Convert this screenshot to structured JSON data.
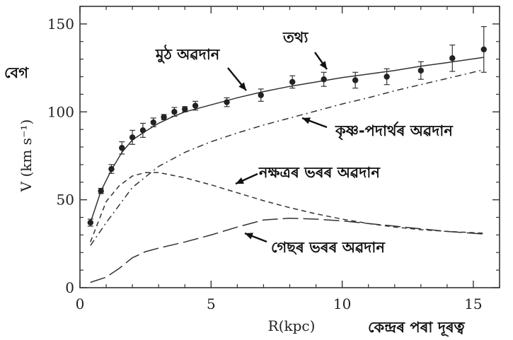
{
  "chart_data": {
    "type": "line",
    "xlabel": "R(kpc)",
    "ylabel": "V (km s⁻¹)",
    "xlim": [
      0,
      16
    ],
    "ylim": [
      0,
      160
    ],
    "xticks": [
      0,
      5,
      10,
      15
    ],
    "yticks": [
      0,
      50,
      100,
      150
    ],
    "xtick_labels": [
      "0",
      "5",
      "10",
      "15"
    ],
    "ytick_labels": [
      "0",
      "50",
      "100",
      "150"
    ],
    "grid": false,
    "observed": {
      "name": "তথ্য",
      "points": [
        {
          "x": 0.4,
          "y": 37,
          "err": 2
        },
        {
          "x": 0.8,
          "y": 55,
          "err": 1.5
        },
        {
          "x": 1.2,
          "y": 67.5,
          "err": 2.5
        },
        {
          "x": 1.6,
          "y": 79.5,
          "err": 3.5
        },
        {
          "x": 2.0,
          "y": 85.5,
          "err": 4
        },
        {
          "x": 2.4,
          "y": 89.5,
          "err": 4
        },
        {
          "x": 2.8,
          "y": 94,
          "err": 2.5
        },
        {
          "x": 3.2,
          "y": 97,
          "err": 1.5
        },
        {
          "x": 3.6,
          "y": 100,
          "err": 2.5
        },
        {
          "x": 4.0,
          "y": 101.5,
          "err": 1.5
        },
        {
          "x": 4.4,
          "y": 103.5,
          "err": 2.5
        },
        {
          "x": 5.6,
          "y": 105.5,
          "err": 2.5
        },
        {
          "x": 6.9,
          "y": 109.5,
          "err": 3.5
        },
        {
          "x": 8.1,
          "y": 117,
          "err": 3.5
        },
        {
          "x": 9.3,
          "y": 118.5,
          "err": 4
        },
        {
          "x": 10.5,
          "y": 118,
          "err": 4.5
        },
        {
          "x": 11.7,
          "y": 120,
          "err": 4.5
        },
        {
          "x": 13.0,
          "y": 123.5,
          "err": 5
        },
        {
          "x": 14.2,
          "y": 130.5,
          "err": 7.5
        },
        {
          "x": 15.4,
          "y": 135.5,
          "err": 13
        }
      ]
    },
    "series": [
      {
        "name": "মুঠ অৱদান",
        "style": "solid",
        "x": [
          0.4,
          0.8,
          1.2,
          1.6,
          2.0,
          2.5,
          3.0,
          3.5,
          4.0,
          5.0,
          6.0,
          7.0,
          8.0,
          9.0,
          10.0,
          11.0,
          12.0,
          13.0,
          14.0,
          15.4
        ],
        "y": [
          37,
          55,
          67,
          77,
          84,
          89,
          93.5,
          97,
          100,
          104,
          108,
          111.5,
          114.5,
          117,
          119.5,
          121.5,
          123.5,
          126,
          128,
          131
        ]
      },
      {
        "name": "কৃষ্ণ-পদাৰ্থৰ অৱদান",
        "style": "dashdot",
        "x": [
          0.4,
          1.0,
          2.0,
          3.0,
          4.0,
          5.0,
          6.0,
          7.0,
          8.0,
          9.0,
          10.0,
          11.0,
          12.0,
          13.0,
          14.0,
          15.4
        ],
        "y": [
          24,
          37,
          57,
          69,
          77,
          83,
          88,
          92.5,
          96.5,
          100.5,
          104.5,
          108,
          112,
          115.5,
          119,
          124
        ]
      },
      {
        "name": "নক্ষত্ৰৰ ভৰৰ অৱদান",
        "style": "short-dash",
        "x": [
          0.4,
          1.0,
          1.5,
          2.0,
          2.5,
          3.0,
          4.0,
          5.0,
          6.0,
          7.0,
          8.0,
          9.0,
          10.0,
          11.0,
          12.0,
          13.0,
          14.0,
          15.4
        ],
        "y": [
          26,
          49,
          58,
          63.5,
          65.5,
          65.5,
          62.5,
          58.5,
          54,
          49.5,
          45.5,
          42,
          39,
          36.5,
          34.5,
          33,
          32,
          31
        ]
      },
      {
        "name": "গেছৰ ভৰৰ অৱদান",
        "style": "long-dash",
        "x": [
          0.4,
          1.0,
          1.5,
          2.0,
          2.5,
          3.0,
          4.0,
          5.0,
          6.0,
          7.0,
          8.0,
          9.0,
          10.0,
          11.0,
          12.0,
          13.0,
          14.0,
          15.4
        ],
        "y": [
          3,
          6,
          11,
          17,
          20.5,
          22.5,
          26,
          30,
          34.5,
          38.5,
          39.5,
          39,
          38,
          36.5,
          35,
          33.5,
          32,
          30.5
        ]
      }
    ],
    "annotations": [
      {
        "text": "মুঠ অৱদান",
        "target_series": 0
      },
      {
        "text": "তথ্য",
        "target": "observed"
      },
      {
        "text": "কৃষ্ণ-পদাৰ্থৰ অৱদান",
        "target_series": 1
      },
      {
        "text": "নক্ষত্ৰৰ ভৰৰ অৱদান",
        "target_series": 2
      },
      {
        "text": "গেছৰ ভৰৰ অৱদান",
        "target_series": 3
      }
    ],
    "extra_labels": {
      "y_native": "বেগ",
      "x_native": "কেন্দ্ৰৰ পৰা দূৰত্ব"
    }
  }
}
